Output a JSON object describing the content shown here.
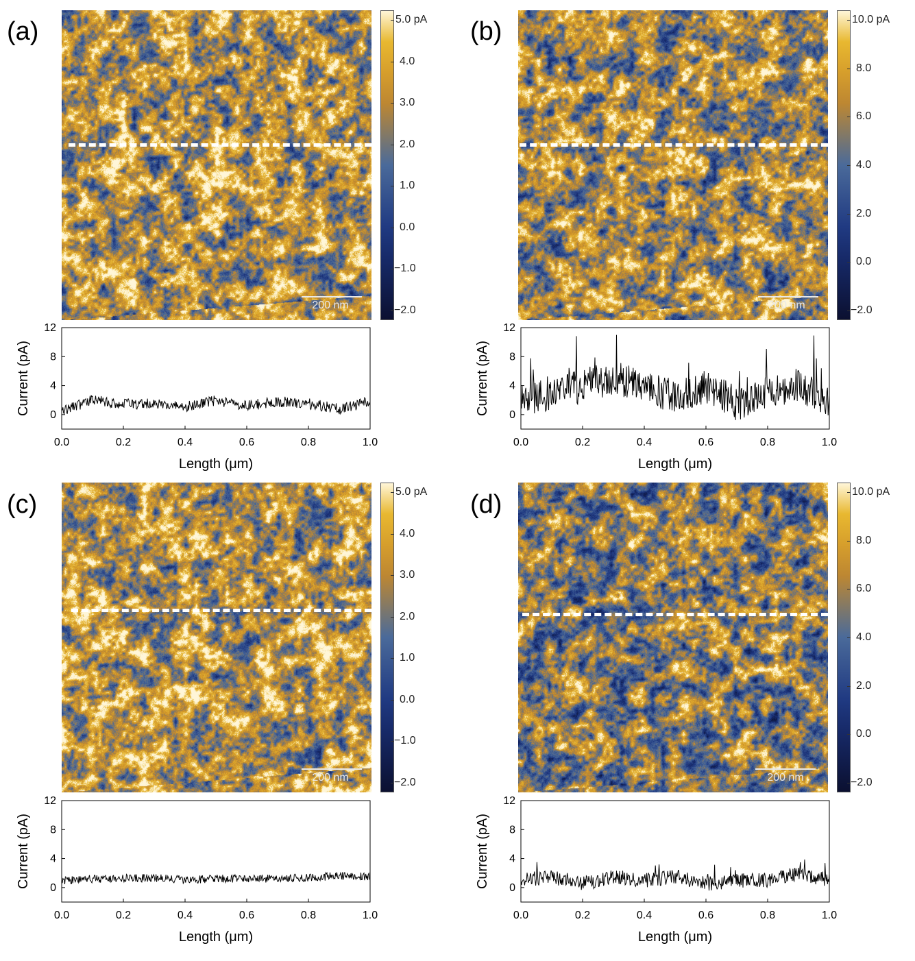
{
  "figure": {
    "panels": [
      {
        "id": "a",
        "letter": "(a)",
        "scale_bar": "200 nm",
        "colorbar_labels": [
          "5.0 pA",
          "4.0",
          "3.0",
          "2.0",
          "1.0",
          "0.0",
          "−1.0",
          "−2.0"
        ],
        "colorbar_min": -2.0,
        "colorbar_max": 5.0,
        "map_blue_fraction": 0.45,
        "profile_mean": 1.6,
        "profile_noise": 0.75,
        "profile_spikes": 0
      },
      {
        "id": "b",
        "letter": "(b)",
        "scale_bar": "200 nm",
        "colorbar_labels": [
          "10.0 pA",
          "8.0",
          "6.0",
          "4.0",
          "2.0",
          "0.0",
          "−2.0"
        ],
        "colorbar_min": -2.0,
        "colorbar_max": 10.0,
        "map_blue_fraction": 0.55,
        "profile_mean": 3.0,
        "profile_noise": 2.4,
        "profile_spikes": 1
      },
      {
        "id": "c",
        "letter": "(c)",
        "scale_bar": "200 nm",
        "colorbar_labels": [
          "5.0 pA",
          "4.0",
          "3.0",
          "2.0",
          "1.0",
          "0.0",
          "−1.0",
          "−2.0"
        ],
        "colorbar_min": -2.0,
        "colorbar_max": 5.0,
        "map_blue_fraction": 0.4,
        "profile_mean": 1.3,
        "profile_noise": 0.55,
        "profile_spikes": 0
      },
      {
        "id": "d",
        "letter": "(d)",
        "scale_bar": "200 nm",
        "colorbar_labels": [
          "10.0 pA",
          "8.0",
          "6.0",
          "4.0",
          "2.0",
          "0.0",
          "−2.0"
        ],
        "colorbar_min": -2.0,
        "colorbar_max": 10.0,
        "map_blue_fraction": 0.8,
        "profile_mean": 1.0,
        "profile_noise": 1.0,
        "profile_spikes": 0.5
      }
    ],
    "colors": {
      "dark": "#0b1030",
      "blue": "#1c3580",
      "steel": "#4a6a9a",
      "orange": "#c88a28",
      "gold": "#e8b830",
      "pale": "#fff6d8",
      "dash": "#ffffff"
    }
  },
  "chart_data": [
    {
      "panel": "a",
      "type": "line",
      "title": "",
      "xlabel": "Length (μm)",
      "ylabel": "Current (pA)",
      "xlim": [
        0.0,
        1.0
      ],
      "ylim": [
        -2,
        12
      ],
      "xticks": [
        "0.0",
        "0.2",
        "0.4",
        "0.6",
        "0.8",
        "1.0"
      ],
      "yticks": [
        "0",
        "4",
        "8",
        "12"
      ],
      "x": [
        0.0,
        0.1,
        0.2,
        0.3,
        0.4,
        0.5,
        0.6,
        0.7,
        0.8,
        0.9,
        1.0
      ],
      "y": [
        0.5,
        2.0,
        1.5,
        1.5,
        1.0,
        2.0,
        1.2,
        1.8,
        1.5,
        0.8,
        1.8
      ]
    },
    {
      "panel": "b",
      "type": "line",
      "title": "",
      "xlabel": "Length (μm)",
      "ylabel": "Current (pA)",
      "xlim": [
        0.0,
        1.0
      ],
      "ylim": [
        -2,
        12
      ],
      "xticks": [
        "0.0",
        "0.2",
        "0.4",
        "0.6",
        "0.8",
        "1.0"
      ],
      "yticks": [
        "0",
        "4",
        "8",
        "12"
      ],
      "x": [
        0.0,
        0.1,
        0.2,
        0.3,
        0.4,
        0.5,
        0.6,
        0.7,
        0.8,
        0.9,
        1.0
      ],
      "y": [
        2.0,
        3.0,
        4.0,
        5.0,
        4.0,
        2.5,
        4.0,
        1.5,
        3.0,
        4.0,
        2.0
      ]
    },
    {
      "panel": "c",
      "type": "line",
      "title": "",
      "xlabel": "Length (μm)",
      "ylabel": "Current (pA)",
      "xlim": [
        0.0,
        1.0
      ],
      "ylim": [
        -2,
        12
      ],
      "xticks": [
        "0.0",
        "0.2",
        "0.4",
        "0.6",
        "0.8",
        "1.0"
      ],
      "yticks": [
        "0",
        "4",
        "8",
        "12"
      ],
      "x": [
        0.0,
        0.1,
        0.2,
        0.3,
        0.4,
        0.5,
        0.6,
        0.7,
        0.8,
        0.9,
        1.0
      ],
      "y": [
        1.0,
        1.2,
        1.3,
        1.3,
        1.1,
        1.2,
        1.3,
        1.2,
        1.4,
        1.6,
        1.5
      ]
    },
    {
      "panel": "d",
      "type": "line",
      "title": "",
      "xlabel": "Length (μm)",
      "ylabel": "Current (pA)",
      "xlim": [
        0.0,
        1.0
      ],
      "ylim": [
        -2,
        12
      ],
      "xticks": [
        "0.0",
        "0.2",
        "0.4",
        "0.6",
        "0.8",
        "1.0"
      ],
      "yticks": [
        "0",
        "4",
        "8",
        "12"
      ],
      "x": [
        0.0,
        0.1,
        0.2,
        0.3,
        0.4,
        0.5,
        0.6,
        0.7,
        0.8,
        0.9,
        1.0
      ],
      "y": [
        1.0,
        1.5,
        0.5,
        1.5,
        1.0,
        1.5,
        0.5,
        1.0,
        1.0,
        2.0,
        1.0
      ]
    }
  ]
}
